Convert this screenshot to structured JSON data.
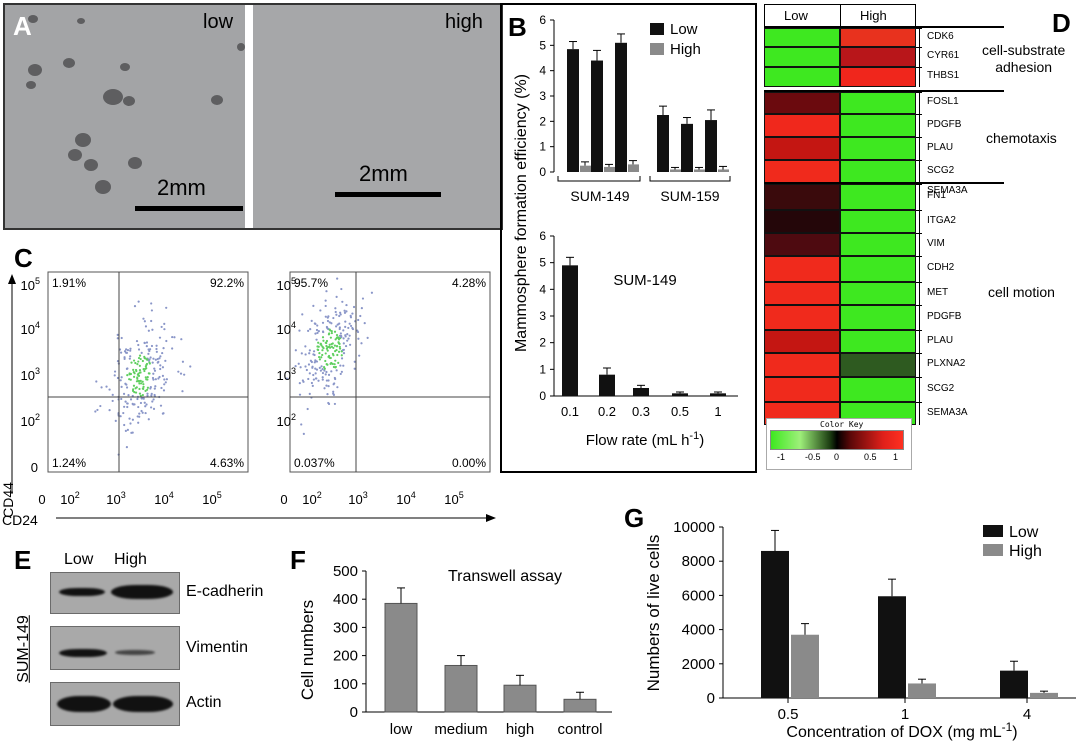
{
  "panel_labels": {
    "a": "A",
    "b": "B",
    "c": "C",
    "d": "D",
    "e": "E",
    "f": "F",
    "g": "G"
  },
  "panel_a": {
    "left_label": "low",
    "right_label": "high",
    "scale_left": "2mm",
    "scale_right": "2mm"
  },
  "chart_data": [
    {
      "id": "B-top",
      "type": "bar",
      "title": "",
      "ylabel": "Mammosphere formation efficiency (%)",
      "ylim": [
        0,
        6
      ],
      "yticks": [
        "0",
        "1",
        "2",
        "3",
        "4",
        "5",
        "6"
      ],
      "groups": [
        "SUM-149",
        "SUM-159"
      ],
      "series": [
        {
          "name": "Low",
          "color": "#111111",
          "values": [
            4.85,
            4.4,
            5.1,
            2.25,
            1.9,
            2.05
          ],
          "errors": [
            0.3,
            0.4,
            0.35,
            0.35,
            0.25,
            0.4
          ]
        },
        {
          "name": "High",
          "color": "#8a8a8a",
          "values": [
            0.25,
            0.2,
            0.3,
            0.1,
            0.1,
            0.1
          ],
          "errors": [
            0.15,
            0.1,
            0.15,
            0.08,
            0.08,
            0.12
          ]
        }
      ]
    },
    {
      "id": "B-bottom",
      "type": "bar",
      "title": "SUM-149",
      "xlabel": "Flow rate (mL h",
      "xlabel_sup": "-1",
      "xlabel_end": ")",
      "ylim": [
        0,
        6
      ],
      "yticks": [
        "0",
        "1",
        "2",
        "3",
        "4",
        "5",
        "6"
      ],
      "categories": [
        "0.1",
        "0.2",
        "0.3",
        "0.5",
        "1"
      ],
      "values": [
        4.9,
        0.8,
        0.3,
        0.1,
        0.1
      ],
      "errors": [
        0.3,
        0.25,
        0.1,
        0.05,
        0.05
      ]
    },
    {
      "id": "F",
      "type": "bar",
      "title": "Transwell assay",
      "ylabel": "Cell numbers",
      "ylim": [
        0,
        500
      ],
      "yticks": [
        "0",
        "100",
        "200",
        "300",
        "400",
        "500"
      ],
      "categories": [
        "low",
        "medium",
        "high",
        "control"
      ],
      "values": [
        385,
        165,
        95,
        45
      ],
      "errors": [
        55,
        35,
        35,
        25
      ]
    },
    {
      "id": "G",
      "type": "bar",
      "ylabel": "Numbers of live cells",
      "xlabel": "Concentration of DOX (mg mL",
      "xlabel_sup": "-1",
      "xlabel_end": ")",
      "ylim": [
        0,
        10000
      ],
      "yticks": [
        "0",
        "2000",
        "4000",
        "6000",
        "8000",
        "10000"
      ],
      "categories": [
        "0.5",
        "1",
        "4"
      ],
      "series": [
        {
          "name": "Low",
          "color": "#111111",
          "values": [
            8600,
            5950,
            1600
          ],
          "errors": [
            1200,
            1000,
            550
          ]
        },
        {
          "name": "High",
          "color": "#8a8a8a",
          "values": [
            3700,
            850,
            300
          ],
          "errors": [
            650,
            250,
            100
          ]
        }
      ]
    }
  ],
  "panel_c": {
    "ylabel": "CD44",
    "xlabel": "CD24",
    "yticks": [
      "10",
      "10",
      "10",
      "10"
    ],
    "ysup": [
      "5",
      "4",
      "3",
      "2"
    ],
    "xticks_left": [
      "0",
      "10",
      "10",
      "10",
      "10"
    ],
    "xsup_left": [
      "",
      "2",
      "3",
      "4",
      "5"
    ],
    "xticks_right": [
      "0",
      "10",
      "10",
      "10",
      "10"
    ],
    "xsup_right": [
      "",
      "2",
      "3",
      "4",
      "5"
    ],
    "ytick0": "0",
    "plot1": {
      "ul": "1.91%",
      "ur": "92.2%",
      "ll": "1.24%",
      "lr": "4.63%"
    },
    "plot2": {
      "ul": "95.7%",
      "ur": "4.28%",
      "ll": "0.037%",
      "lr": "0.00%"
    }
  },
  "panel_d": {
    "col_low": "Low",
    "col_high": "High",
    "groups": [
      {
        "name": "cell-substrate\nadhesion",
        "genes": [
          "CDK6",
          "CYR61",
          "THBS1"
        ],
        "low": [
          "#3ee820",
          "#3ee820",
          "#3ee820"
        ],
        "high": [
          "#e8321e",
          "#b8161a",
          "#f0261c"
        ]
      },
      {
        "name": "chemotaxis",
        "genes": [
          "FOSL1",
          "PDGFB",
          "PLAU",
          "SCG2",
          "SEMA3A"
        ],
        "low": [
          "#6b0a0e",
          "#f0281c",
          "#c41612",
          "#f02a1c",
          "#ee2a1c"
        ],
        "high": [
          "#3ee820",
          "#3ee820",
          "#3ee820",
          "#3ee820",
          "#3ee820"
        ]
      },
      {
        "name": "cell motion",
        "genes": [
          "FN1",
          "ITGA2",
          "VIM",
          "CDH2",
          "MET",
          "PDGFB",
          "PLAU",
          "PLXNA2",
          "SCG2",
          "SEMA3A"
        ],
        "low": [
          "#3a0a0c",
          "#240609",
          "#4e0a10",
          "#f02a1c",
          "#f02a1c",
          "#f02a1c",
          "#c41612",
          "#f02a1c",
          "#f02a1c",
          "#f02a1c"
        ],
        "high": [
          "#3ee820",
          "#3ee820",
          "#3ee820",
          "#3ee820",
          "#3ee820",
          "#3ee820",
          "#3ee820",
          "#2e5a20",
          "#3ee820",
          "#3ee820"
        ]
      }
    ],
    "color_key": {
      "title": "Color Key",
      "ticks": [
        "-1",
        "-0.5",
        "0",
        "0.5",
        "1"
      ]
    }
  },
  "panel_e": {
    "col_low": "Low",
    "col_high": "High",
    "side_label": "SUM-149",
    "rows": [
      "E-cadherin",
      "Vimentin",
      "Actin"
    ]
  }
}
